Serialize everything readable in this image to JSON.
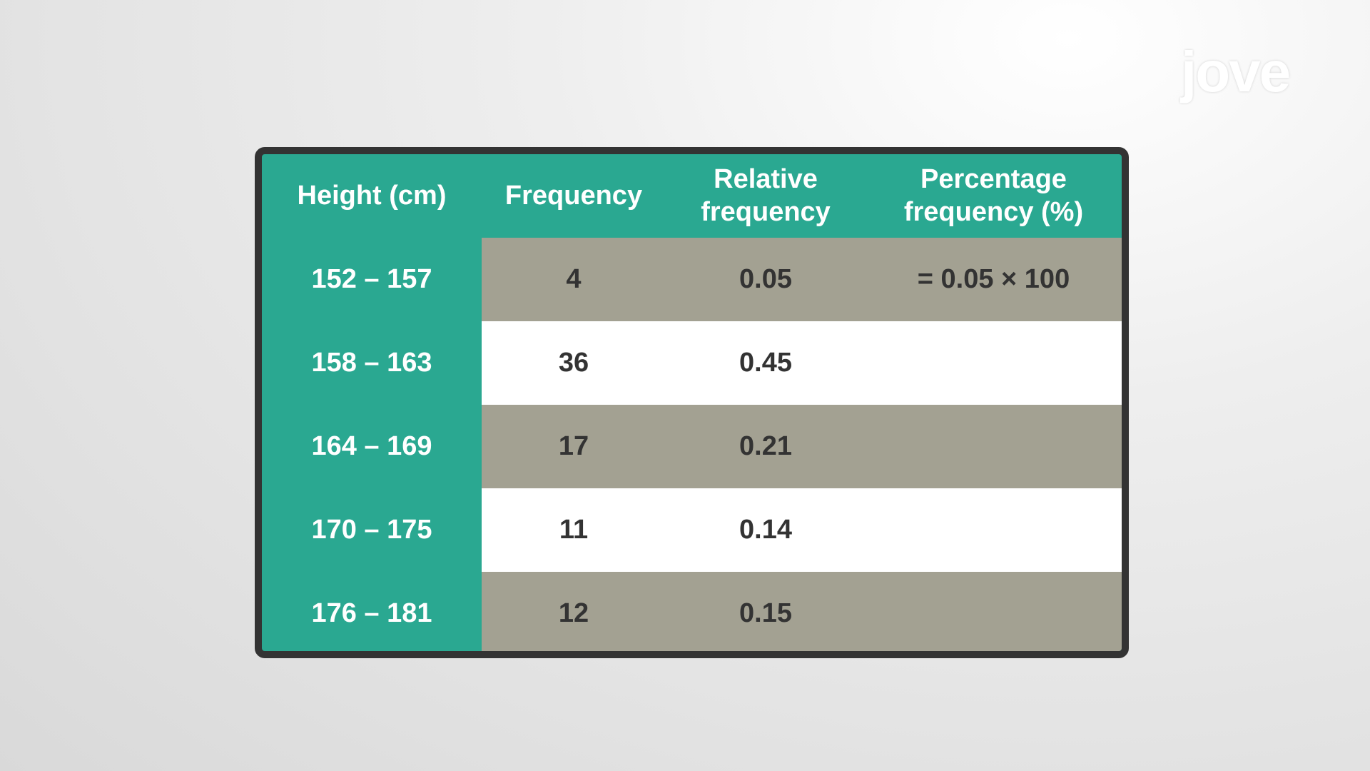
{
  "logo": "jove",
  "table": {
    "header": [
      "Height (cm)",
      "Frequency",
      "Relative frequency",
      "Percentage frequency (%)"
    ],
    "rows": [
      [
        "152 – 157",
        "4",
        "0.05",
        "= 0.05 × 100"
      ],
      [
        "158 – 163",
        "36",
        "0.45"
      ],
      [
        "164 – 169",
        "17",
        "0.21"
      ],
      [
        "170 – 175",
        "11",
        "0.14"
      ],
      [
        "176 – 181",
        "12",
        "0.15"
      ]
    ]
  }
}
